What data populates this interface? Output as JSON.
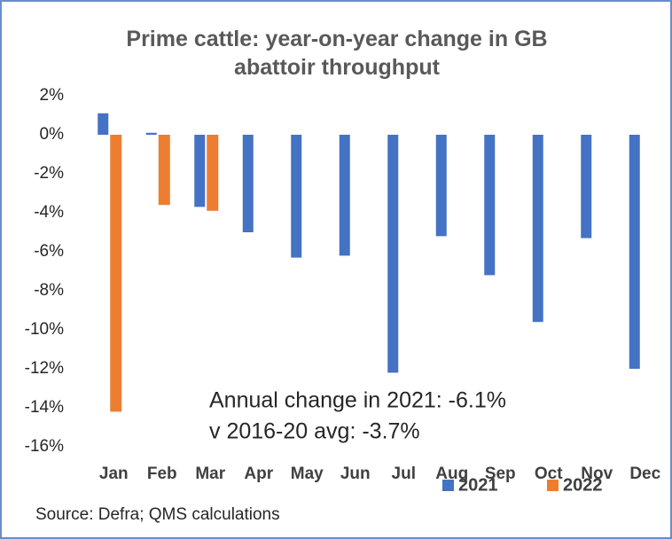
{
  "chart_data": {
    "type": "bar",
    "title": "Prime cattle: year-on-year change in GB abattoir throughput",
    "categories": [
      "Jan",
      "Feb",
      "Mar",
      "Apr",
      "May",
      "Jun",
      "Jul",
      "Aug",
      "Sep",
      "Oct",
      "Nov",
      "Dec"
    ],
    "series": [
      {
        "name": "2021",
        "color": "#4472c4",
        "values": [
          1.1,
          0.1,
          -3.7,
          -5.0,
          -6.3,
          -6.2,
          -12.2,
          -5.2,
          -7.2,
          -9.6,
          -5.3,
          -12.0
        ]
      },
      {
        "name": "2022",
        "color": "#ed7d31",
        "values": [
          -14.2,
          -3.6,
          -3.9,
          null,
          null,
          null,
          null,
          null,
          null,
          null,
          null,
          null
        ]
      }
    ],
    "ylim": [
      -16,
      2
    ],
    "yticks": [
      {
        "value": 2,
        "label": "2%"
      },
      {
        "value": 0,
        "label": "0%"
      },
      {
        "value": -2,
        "label": "-2%"
      },
      {
        "value": -4,
        "label": "-4%"
      },
      {
        "value": -6,
        "label": "-6%"
      },
      {
        "value": -8,
        "label": "-8%"
      },
      {
        "value": -10,
        "label": "-10%"
      },
      {
        "value": -12,
        "label": "-12%"
      },
      {
        "value": -14,
        "label": "-14%"
      },
      {
        "value": -16,
        "label": "-16%"
      }
    ],
    "annotations": [
      "Annual change in 2021: -6.1%",
      "v 2016-20 avg: -3.7%"
    ],
    "source": "Source: Defra; QMS calculations",
    "legend": "bottom-right"
  }
}
